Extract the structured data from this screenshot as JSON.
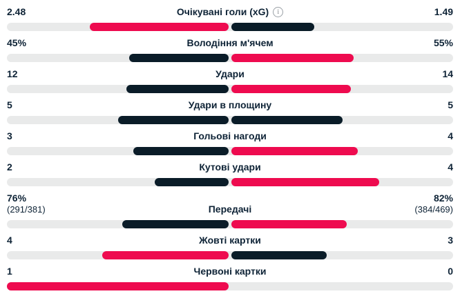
{
  "colors": {
    "leading_bar": "#ee0b4f",
    "trailing_bar": "#0a1c28",
    "track": "#e9eaea",
    "text": "#0e2336",
    "info_icon": "#9aa0a6"
  },
  "icons": {
    "info_glyph": "i"
  },
  "chart_data": {
    "type": "bar",
    "subtype": "head-to-head mirrored comparison, bars grow outward from center, highlighted color marks the leading side",
    "title": "",
    "legend_position": "none",
    "grid": false,
    "rows": [
      {
        "label": "Очікувані голи (xG)",
        "has_info_icon": true,
        "home_display": "2.48",
        "away_display": "1.49",
        "home_value": 2.48,
        "away_value": 1.49
      },
      {
        "label": "Володіння м'ячем",
        "has_info_icon": false,
        "home_display": "45%",
        "away_display": "55%",
        "home_value": 45,
        "away_value": 55
      },
      {
        "label": "Удари",
        "has_info_icon": false,
        "home_display": "12",
        "away_display": "14",
        "home_value": 12,
        "away_value": 14
      },
      {
        "label": "Удари в площину",
        "has_info_icon": false,
        "home_display": "5",
        "away_display": "5",
        "home_value": 5,
        "away_value": 5
      },
      {
        "label": "Гольові нагоди",
        "has_info_icon": false,
        "home_display": "3",
        "away_display": "4",
        "home_value": 3,
        "away_value": 4
      },
      {
        "label": "Кутові удари",
        "has_info_icon": false,
        "home_display": "2",
        "away_display": "4",
        "home_value": 2,
        "away_value": 4
      },
      {
        "label": "Передачі",
        "has_info_icon": false,
        "home_display": "76%",
        "home_secondary": "(291/381)",
        "away_display": "82%",
        "away_secondary": "(384/469)",
        "home_value": 76,
        "away_value": 82
      },
      {
        "label": "Жовті картки",
        "has_info_icon": false,
        "home_display": "4",
        "away_display": "3",
        "home_value": 4,
        "away_value": 3
      },
      {
        "label": "Червоні картки",
        "has_info_icon": false,
        "home_display": "1",
        "away_display": "0",
        "home_value": 1,
        "away_value": 0
      }
    ]
  }
}
